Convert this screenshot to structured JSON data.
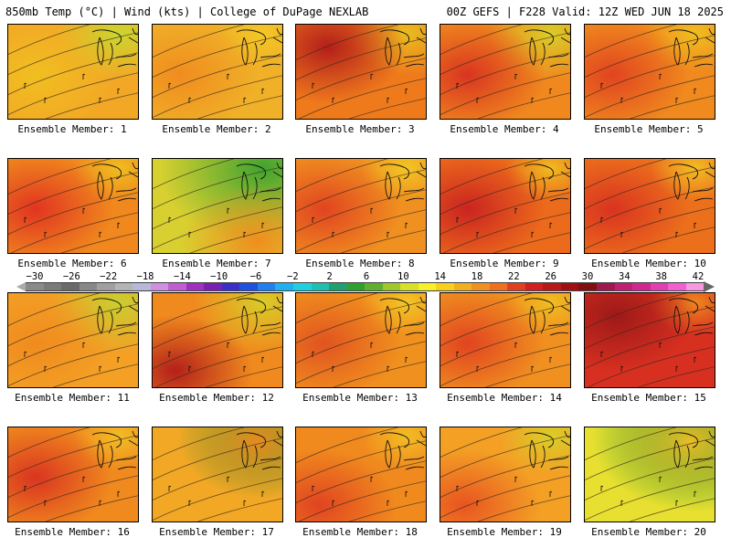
{
  "header": {
    "left": "850mb Temp (°C) | Wind (kts) | College of DuPage NEXLAB",
    "right": "00Z GEFS | F228 Valid: 12Z WED JUN 18 2025"
  },
  "panels": [
    {
      "label": "Ensemble Member: 1",
      "base": "#f3a825",
      "hot": "#f0c020",
      "cool": "#c8d830",
      "hotspot": "left",
      "greens": 0.3
    },
    {
      "label": "Ensemble Member: 2",
      "base": "#f0b028",
      "hot": "#f08a1e",
      "cool": "#f3c825",
      "hotspot": "left",
      "greens": 0.0
    },
    {
      "label": "Ensemble Member: 3",
      "base": "#ef7a1c",
      "hot": "#b01a1a",
      "cool": "#e8c020",
      "hotspot": "top-left",
      "greens": 0.2
    },
    {
      "label": "Ensemble Member: 4",
      "base": "#f0881e",
      "hot": "#d83020",
      "cool": "#d8d028",
      "hotspot": "left",
      "greens": 0.3
    },
    {
      "label": "Ensemble Member: 5",
      "base": "#f08a1e",
      "hot": "#e04020",
      "cool": "#f0c020",
      "hotspot": "left",
      "greens": 0.1
    },
    {
      "label": "Ensemble Member: 6",
      "base": "#f0881e",
      "hot": "#e03020",
      "cool": "#f0c020",
      "hotspot": "left",
      "greens": 0.0
    },
    {
      "label": "Ensemble Member: 7",
      "base": "#d8d030",
      "hot": "#f08a1e",
      "cool": "#3aa030",
      "hotspot": "bottom-right",
      "greens": 1.0
    },
    {
      "label": "Ensemble Member: 8",
      "base": "#f09020",
      "hot": "#e04020",
      "cool": "#f3c825",
      "hotspot": "left",
      "greens": 0.0
    },
    {
      "label": "Ensemble Member: 9",
      "base": "#ec6a1c",
      "hot": "#c82020",
      "cool": "#f0c020",
      "hotspot": "left",
      "greens": 0.0
    },
    {
      "label": "Ensemble Member: 10",
      "base": "#ec701c",
      "hot": "#d83020",
      "cool": "#f3c025",
      "hotspot": "left",
      "greens": 0.0
    },
    {
      "label": "Ensemble Member: 11",
      "base": "#f3a025",
      "hot": "#f08a1e",
      "cool": "#c8d030",
      "hotspot": "left",
      "greens": 0.4
    },
    {
      "label": "Ensemble Member: 12",
      "base": "#f08a1e",
      "hot": "#b01a1a",
      "cool": "#d8d028",
      "hotspot": "bottom-left",
      "greens": 0.4
    },
    {
      "label": "Ensemble Member: 13",
      "base": "#f0901e",
      "hot": "#e05020",
      "cool": "#f3c825",
      "hotspot": "left",
      "greens": 0.0
    },
    {
      "label": "Ensemble Member: 14",
      "base": "#f09020",
      "hot": "#e04020",
      "cool": "#f0c020",
      "hotspot": "left",
      "greens": 0.0
    },
    {
      "label": "Ensemble Member: 15",
      "base": "#d83020",
      "hot": "#9a1818",
      "cool": "#f08a1e",
      "hotspot": "top-left",
      "greens": 0.0
    },
    {
      "label": "Ensemble Member: 16",
      "base": "#f08a1e",
      "hot": "#d83020",
      "cool": "#f3c025",
      "hotspot": "left",
      "greens": 0.0
    },
    {
      "label": "Ensemble Member: 17",
      "base": "#f3a825",
      "hot": "#f08a1e",
      "cool": "#3aa030",
      "hotspot": "top-right",
      "greens": 0.7
    },
    {
      "label": "Ensemble Member: 18",
      "base": "#f08a1e",
      "hot": "#e04020",
      "cool": "#f3c025",
      "hotspot": "bottom-left",
      "greens": 0.0
    },
    {
      "label": "Ensemble Member: 19",
      "base": "#f3a025",
      "hot": "#e85020",
      "cool": "#d8d028",
      "hotspot": "bottom-left",
      "greens": 0.1
    },
    {
      "label": "Ensemble Member: 20",
      "base": "#e8e030",
      "hot": "#f3c025",
      "cool": "#1f8a30",
      "hotspot": "top-right",
      "greens": 1.0
    }
  ],
  "colorbar": {
    "ticks": [
      "−30",
      "−26",
      "−22",
      "−18",
      "−14",
      "−10",
      "−6",
      "−2",
      "2",
      "6",
      "10",
      "14",
      "18",
      "22",
      "26",
      "30",
      "34",
      "38",
      "42"
    ],
    "colors": [
      "#8a8a8a",
      "#7a7a7a",
      "#6a6a6a",
      "#888888",
      "#a0a0a0",
      "#b4b4b4",
      "#b8b8d8",
      "#d090e0",
      "#c060d0",
      "#a030c0",
      "#7a20b0",
      "#3a30c8",
      "#2050e0",
      "#2080f0",
      "#20b0f0",
      "#20d0e0",
      "#20c0b0",
      "#20a070",
      "#30a030",
      "#60b030",
      "#a0c828",
      "#d8e028",
      "#f8f028",
      "#f8d020",
      "#f0b020",
      "#f09020",
      "#f07020",
      "#e04020",
      "#d02020",
      "#b81818",
      "#a01010",
      "#801010",
      "#a01850",
      "#c02070",
      "#d02890",
      "#e040b0",
      "#f060d0",
      "#f898e0"
    ]
  }
}
